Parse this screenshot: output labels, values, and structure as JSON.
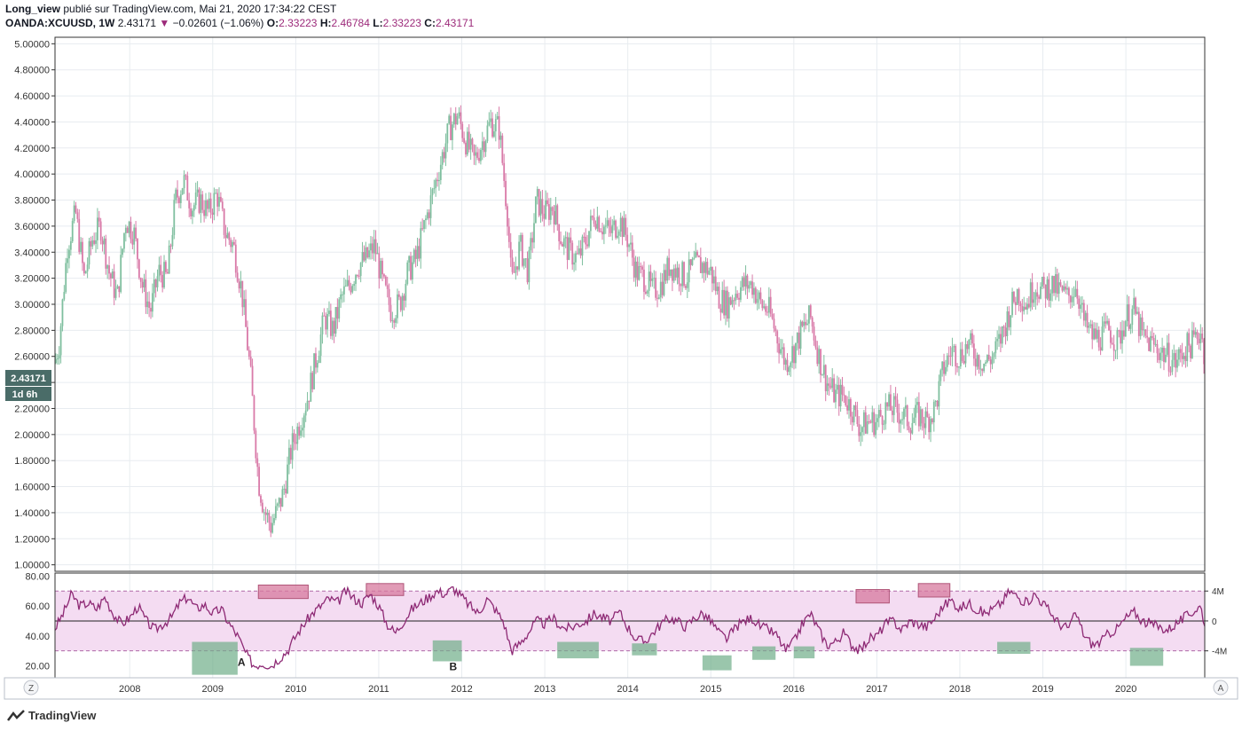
{
  "header": {
    "line1_author": "Long_view",
    "line1_rest": " publié sur TradingView.com, Mai 21, 2020 17:34:22 CEST",
    "symbol": "OANDA:XCUUSD, 1W",
    "last": "2.43171",
    "change_arrow": "▼",
    "change": "−0.02601 (−1.06%)",
    "o_label": "O:",
    "o_val": "2.33223",
    "h_label": "H:",
    "h_val": "2.46784",
    "l_label": "L:",
    "l_val": "2.33223",
    "c_label": "C:",
    "c_val": "2.43171"
  },
  "price_badge": "2.43171",
  "time_badge": "1d 6h",
  "footer": {
    "brand": "TradingView"
  },
  "corner_left": "Z",
  "corner_right": "A",
  "colors": {
    "up": "#7fbf9f",
    "down": "#d97aa8",
    "rsi_line": "#8e2a75",
    "rsi_band": "#f4dcf2",
    "rsi_green_box": "#6fae89",
    "rsi_red_box": "#d77a9e",
    "grid": "#e8ecf0",
    "badge": "#4a6c68"
  },
  "chart_data": [
    {
      "type": "candlestick",
      "xlabel_ticks": [
        "2008",
        "2009",
        "2010",
        "2011",
        "2012",
        "2013",
        "2014",
        "2015",
        "2016",
        "2017",
        "2018",
        "2019",
        "2020"
      ],
      "yticks": [
        "5.00000",
        "4.80000",
        "4.60000",
        "4.40000",
        "4.20000",
        "4.00000",
        "3.80000",
        "3.60000",
        "3.40000",
        "3.20000",
        "3.00000",
        "2.80000",
        "2.60000",
        "2.40000",
        "2.20000",
        "2.00000",
        "1.80000",
        "1.60000",
        "1.40000",
        "1.20000",
        "1.00000"
      ],
      "ylim": [
        0.95,
        5.05
      ],
      "xlim": [
        2007.1,
        2020.95
      ],
      "grid": true,
      "path_points": [
        [
          2007.1,
          2.55
        ],
        [
          2007.15,
          2.7
        ],
        [
          2007.25,
          3.45
        ],
        [
          2007.35,
          3.7
        ],
        [
          2007.45,
          3.2
        ],
        [
          2007.55,
          3.5
        ],
        [
          2007.65,
          3.6
        ],
        [
          2007.75,
          3.25
        ],
        [
          2007.85,
          3.05
        ],
        [
          2007.95,
          3.65
        ],
        [
          2008.05,
          3.55
        ],
        [
          2008.15,
          3.15
        ],
        [
          2008.25,
          2.95
        ],
        [
          2008.35,
          3.25
        ],
        [
          2008.45,
          3.2
        ],
        [
          2008.55,
          3.8
        ],
        [
          2008.65,
          3.95
        ],
        [
          2008.75,
          3.75
        ],
        [
          2008.85,
          3.8
        ],
        [
          2008.95,
          3.7
        ],
        [
          2009.05,
          3.85
        ],
        [
          2009.15,
          3.55
        ],
        [
          2009.25,
          3.45
        ],
        [
          2009.35,
          3.1
        ],
        [
          2009.45,
          2.5
        ],
        [
          2009.55,
          1.65
        ],
        [
          2009.62,
          1.42
        ],
        [
          2009.7,
          1.3
        ],
        [
          2009.78,
          1.42
        ],
        [
          2009.85,
          1.55
        ],
        [
          2009.95,
          1.9
        ],
        [
          2010.05,
          2.1
        ],
        [
          2010.15,
          2.3
        ],
        [
          2010.25,
          2.6
        ],
        [
          2010.35,
          2.9
        ],
        [
          2010.45,
          2.8
        ],
        [
          2010.55,
          3.05
        ],
        [
          2010.65,
          3.15
        ],
        [
          2010.75,
          3.3
        ],
        [
          2010.85,
          3.35
        ],
        [
          2010.95,
          3.45
        ],
        [
          2011.05,
          3.15
        ],
        [
          2011.15,
          2.95
        ],
        [
          2011.25,
          3.0
        ],
        [
          2011.35,
          3.25
        ],
        [
          2011.45,
          3.35
        ],
        [
          2011.55,
          3.6
        ],
        [
          2011.65,
          3.85
        ],
        [
          2011.75,
          4.1
        ],
        [
          2011.85,
          4.35
        ],
        [
          2011.95,
          4.45
        ],
        [
          2012.05,
          4.25
        ],
        [
          2012.15,
          4.1
        ],
        [
          2012.25,
          4.25
        ],
        [
          2012.35,
          4.4
        ],
        [
          2012.45,
          4.35
        ],
        [
          2012.55,
          3.7
        ],
        [
          2012.6,
          3.15
        ],
        [
          2012.7,
          3.45
        ],
        [
          2012.8,
          3.25
        ],
        [
          2012.9,
          3.8
        ],
        [
          2013.0,
          3.7
        ],
        [
          2013.1,
          3.75
        ],
        [
          2013.2,
          3.5
        ],
        [
          2013.3,
          3.4
        ],
        [
          2013.4,
          3.35
        ],
        [
          2013.5,
          3.5
        ],
        [
          2013.6,
          3.7
        ],
        [
          2013.7,
          3.6
        ],
        [
          2013.8,
          3.55
        ],
        [
          2013.9,
          3.65
        ],
        [
          2014.0,
          3.5
        ],
        [
          2014.1,
          3.25
        ],
        [
          2014.2,
          3.2
        ],
        [
          2014.3,
          3.1
        ],
        [
          2014.4,
          3.15
        ],
        [
          2014.5,
          3.3
        ],
        [
          2014.6,
          3.25
        ],
        [
          2014.7,
          3.2
        ],
        [
          2014.8,
          3.3
        ],
        [
          2014.9,
          3.3
        ],
        [
          2015.0,
          3.25
        ],
        [
          2015.1,
          3.05
        ],
        [
          2015.2,
          3.0
        ],
        [
          2015.3,
          3.1
        ],
        [
          2015.4,
          3.15
        ],
        [
          2015.5,
          3.15
        ],
        [
          2015.6,
          3.0
        ],
        [
          2015.7,
          2.95
        ],
        [
          2015.8,
          2.75
        ],
        [
          2015.9,
          2.55
        ],
        [
          2016.0,
          2.65
        ],
        [
          2016.1,
          2.8
        ],
        [
          2016.2,
          2.9
        ],
        [
          2016.3,
          2.6
        ],
        [
          2016.4,
          2.4
        ],
        [
          2016.5,
          2.3
        ],
        [
          2016.6,
          2.3
        ],
        [
          2016.7,
          2.2
        ],
        [
          2016.8,
          2.05
        ],
        [
          2016.9,
          2.1
        ],
        [
          2017.0,
          2.1
        ],
        [
          2017.1,
          2.2
        ],
        [
          2017.2,
          2.2
        ],
        [
          2017.3,
          2.15
        ],
        [
          2017.4,
          2.1
        ],
        [
          2017.5,
          2.15
        ],
        [
          2017.6,
          2.1
        ],
        [
          2017.7,
          2.2
        ],
        [
          2017.8,
          2.5
        ],
        [
          2017.9,
          2.65
        ],
        [
          2018.0,
          2.6
        ],
        [
          2018.1,
          2.7
        ],
        [
          2018.2,
          2.6
        ],
        [
          2018.3,
          2.55
        ],
        [
          2018.4,
          2.6
        ],
        [
          2018.5,
          2.75
        ],
        [
          2018.6,
          2.95
        ],
        [
          2018.7,
          3.1
        ],
        [
          2018.8,
          3.0
        ],
        [
          2018.9,
          3.15
        ],
        [
          2019.0,
          3.1
        ],
        [
          2019.1,
          3.15
        ],
        [
          2019.2,
          3.1
        ],
        [
          2019.3,
          3.05
        ],
        [
          2019.4,
          3.15
        ],
        [
          2019.5,
          2.85
        ],
        [
          2019.6,
          2.75
        ],
        [
          2019.7,
          2.75
        ],
        [
          2019.8,
          2.8
        ],
        [
          2019.9,
          2.7
        ],
        [
          2020.0,
          2.9
        ],
        [
          2020.1,
          2.95
        ],
        [
          2020.2,
          2.75
        ],
        [
          2020.3,
          2.7
        ],
        [
          2020.4,
          2.65
        ],
        [
          2020.5,
          2.6
        ],
        [
          2020.6,
          2.55
        ],
        [
          2020.7,
          2.65
        ],
        [
          2020.8,
          2.7
        ],
        [
          2020.9,
          2.8
        ],
        [
          2020.95,
          2.6
        ]
      ]
    },
    {
      "type": "line",
      "name": "",
      "yticks": [
        "80.00",
        "60.00",
        "40.00",
        "20.00"
      ],
      "ylim": [
        12,
        82
      ],
      "right_ticks": [
        "4M",
        "0",
        "-4M"
      ],
      "band": [
        30,
        70
      ],
      "midline": 50,
      "labels": [
        {
          "text": "A",
          "x": 2009.3,
          "y": 20
        },
        {
          "text": "B",
          "x": 2011.85,
          "y": 17
        }
      ],
      "green_boxes": [
        [
          2008.75,
          2009.3,
          14,
          36
        ],
        [
          2011.65,
          2012.0,
          23,
          37
        ],
        [
          2013.15,
          2013.65,
          25,
          36
        ],
        [
          2014.05,
          2014.35,
          27,
          35
        ],
        [
          2014.9,
          2015.25,
          17,
          27
        ],
        [
          2015.5,
          2015.78,
          24,
          33
        ],
        [
          2016.0,
          2016.25,
          25,
          33
        ],
        [
          2018.45,
          2018.85,
          28,
          36
        ],
        [
          2020.05,
          2020.45,
          20,
          32
        ]
      ],
      "red_boxes": [
        [
          2009.55,
          2010.15,
          65,
          74
        ],
        [
          2010.85,
          2011.3,
          67,
          75
        ],
        [
          2016.75,
          2017.15,
          62,
          71
        ],
        [
          2017.5,
          2017.88,
          66,
          75
        ]
      ],
      "points": [
        [
          2007.1,
          45
        ],
        [
          2007.2,
          55
        ],
        [
          2007.3,
          68
        ],
        [
          2007.4,
          60
        ],
        [
          2007.5,
          62
        ],
        [
          2007.6,
          58
        ],
        [
          2007.7,
          66
        ],
        [
          2007.8,
          55
        ],
        [
          2007.9,
          48
        ],
        [
          2008.0,
          52
        ],
        [
          2008.1,
          60
        ],
        [
          2008.2,
          50
        ],
        [
          2008.3,
          44
        ],
        [
          2008.4,
          48
        ],
        [
          2008.5,
          52
        ],
        [
          2008.6,
          62
        ],
        [
          2008.7,
          66
        ],
        [
          2008.8,
          58
        ],
        [
          2008.9,
          61
        ],
        [
          2009.0,
          55
        ],
        [
          2009.1,
          58
        ],
        [
          2009.2,
          48
        ],
        [
          2009.3,
          40
        ],
        [
          2009.4,
          28
        ],
        [
          2009.5,
          20
        ],
        [
          2009.6,
          22
        ],
        [
          2009.7,
          20
        ],
        [
          2009.8,
          25
        ],
        [
          2009.9,
          30
        ],
        [
          2010.0,
          40
        ],
        [
          2010.1,
          48
        ],
        [
          2010.2,
          55
        ],
        [
          2010.3,
          60
        ],
        [
          2010.4,
          65
        ],
        [
          2010.5,
          62
        ],
        [
          2010.6,
          70
        ],
        [
          2010.7,
          65
        ],
        [
          2010.8,
          62
        ],
        [
          2010.9,
          68
        ],
        [
          2011.0,
          60
        ],
        [
          2011.1,
          48
        ],
        [
          2011.2,
          42
        ],
        [
          2011.3,
          50
        ],
        [
          2011.4,
          58
        ],
        [
          2011.5,
          62
        ],
        [
          2011.6,
          66
        ],
        [
          2011.7,
          70
        ],
        [
          2011.8,
          68
        ],
        [
          2011.9,
          72
        ],
        [
          2012.0,
          66
        ],
        [
          2012.1,
          60
        ],
        [
          2012.2,
          55
        ],
        [
          2012.3,
          65
        ],
        [
          2012.4,
          58
        ],
        [
          2012.5,
          50
        ],
        [
          2012.6,
          30
        ],
        [
          2012.7,
          35
        ],
        [
          2012.8,
          42
        ],
        [
          2012.9,
          50
        ],
        [
          2013.0,
          48
        ],
        [
          2013.1,
          52
        ],
        [
          2013.2,
          46
        ],
        [
          2013.3,
          45
        ],
        [
          2013.4,
          48
        ],
        [
          2013.5,
          50
        ],
        [
          2013.6,
          55
        ],
        [
          2013.7,
          52
        ],
        [
          2013.8,
          50
        ],
        [
          2013.9,
          56
        ],
        [
          2014.0,
          46
        ],
        [
          2014.1,
          38
        ],
        [
          2014.2,
          36
        ],
        [
          2014.3,
          42
        ],
        [
          2014.4,
          48
        ],
        [
          2014.5,
          52
        ],
        [
          2014.6,
          50
        ],
        [
          2014.7,
          46
        ],
        [
          2014.8,
          52
        ],
        [
          2014.9,
          55
        ],
        [
          2015.0,
          50
        ],
        [
          2015.1,
          42
        ],
        [
          2015.2,
          38
        ],
        [
          2015.3,
          46
        ],
        [
          2015.4,
          50
        ],
        [
          2015.5,
          52
        ],
        [
          2015.6,
          46
        ],
        [
          2015.7,
          44
        ],
        [
          2015.8,
          40
        ],
        [
          2015.9,
          30
        ],
        [
          2016.0,
          36
        ],
        [
          2016.1,
          48
        ],
        [
          2016.2,
          55
        ],
        [
          2016.3,
          44
        ],
        [
          2016.4,
          34
        ],
        [
          2016.5,
          36
        ],
        [
          2016.6,
          42
        ],
        [
          2016.7,
          34
        ],
        [
          2016.8,
          30
        ],
        [
          2016.9,
          38
        ],
        [
          2017.0,
          40
        ],
        [
          2017.1,
          48
        ],
        [
          2017.2,
          50
        ],
        [
          2017.3,
          44
        ],
        [
          2017.4,
          50
        ],
        [
          2017.5,
          48
        ],
        [
          2017.6,
          46
        ],
        [
          2017.7,
          52
        ],
        [
          2017.8,
          60
        ],
        [
          2017.9,
          64
        ],
        [
          2018.0,
          58
        ],
        [
          2018.1,
          62
        ],
        [
          2018.2,
          58
        ],
        [
          2018.3,
          55
        ],
        [
          2018.4,
          58
        ],
        [
          2018.5,
          62
        ],
        [
          2018.6,
          70
        ],
        [
          2018.7,
          66
        ],
        [
          2018.8,
          62
        ],
        [
          2018.9,
          68
        ],
        [
          2019.0,
          62
        ],
        [
          2019.1,
          55
        ],
        [
          2019.2,
          48
        ],
        [
          2019.3,
          45
        ],
        [
          2019.4,
          55
        ],
        [
          2019.5,
          40
        ],
        [
          2019.6,
          34
        ],
        [
          2019.7,
          36
        ],
        [
          2019.8,
          42
        ],
        [
          2019.9,
          45
        ],
        [
          2020.0,
          52
        ],
        [
          2020.1,
          56
        ],
        [
          2020.2,
          50
        ],
        [
          2020.3,
          48
        ],
        [
          2020.4,
          46
        ],
        [
          2020.5,
          44
        ],
        [
          2020.6,
          48
        ],
        [
          2020.7,
          52
        ],
        [
          2020.8,
          56
        ],
        [
          2020.9,
          60
        ],
        [
          2020.95,
          48
        ]
      ]
    }
  ]
}
